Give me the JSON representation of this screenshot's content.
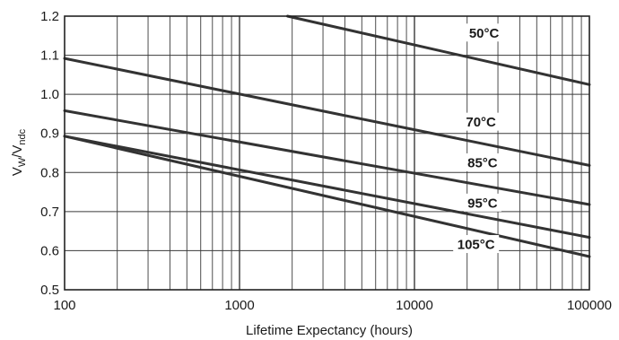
{
  "chart_data": {
    "type": "line",
    "x_scale": "log",
    "xlabel": "Lifetime Expectancy (hours)",
    "ylabel": "V_W/V_ndc",
    "ylabel_main": "V",
    "ylabel_sub1": "W",
    "ylabel_mid": "/V",
    "ylabel_sub2": "ndc",
    "xlim": [
      100,
      100000
    ],
    "ylim": [
      0.5,
      1.2
    ],
    "x_tick_labels": [
      "100",
      "1000",
      "10000",
      "100000"
    ],
    "x_tick_values": [
      100,
      1000,
      10000,
      100000
    ],
    "y_tick_labels": [
      "0.5",
      "0.6",
      "0.7",
      "0.8",
      "0.9",
      "1.0",
      "1.1",
      "1.2"
    ],
    "y_tick_values": [
      0.5,
      0.6,
      0.7,
      0.8,
      0.9,
      1.0,
      1.1,
      1.2
    ],
    "grid": true,
    "line_color": "#333333",
    "series": [
      {
        "name": "50°C",
        "x": [
          1880,
          100000
        ],
        "y": [
          1.2,
          1.025
        ]
      },
      {
        "name": "70°C",
        "x": [
          100,
          100000
        ],
        "y": [
          1.092,
          0.818
        ]
      },
      {
        "name": "85°C",
        "x": [
          100,
          100000
        ],
        "y": [
          0.958,
          0.718
        ]
      },
      {
        "name": "95°C",
        "x": [
          100,
          100000
        ],
        "y": [
          0.893,
          0.634
        ]
      },
      {
        "name": "105°C",
        "x": [
          100,
          100000
        ],
        "y": [
          0.893,
          0.585
        ]
      }
    ],
    "label_positions": [
      {
        "text": "50°C",
        "x": 25000,
        "y": 1.158
      },
      {
        "text": "70°C",
        "x": 24000,
        "y": 0.93
      },
      {
        "text": "85°C",
        "x": 24500,
        "y": 0.826
      },
      {
        "text": "95°C",
        "x": 24500,
        "y": 0.723
      },
      {
        "text": "105°C",
        "x": 22500,
        "y": 0.617
      }
    ]
  }
}
